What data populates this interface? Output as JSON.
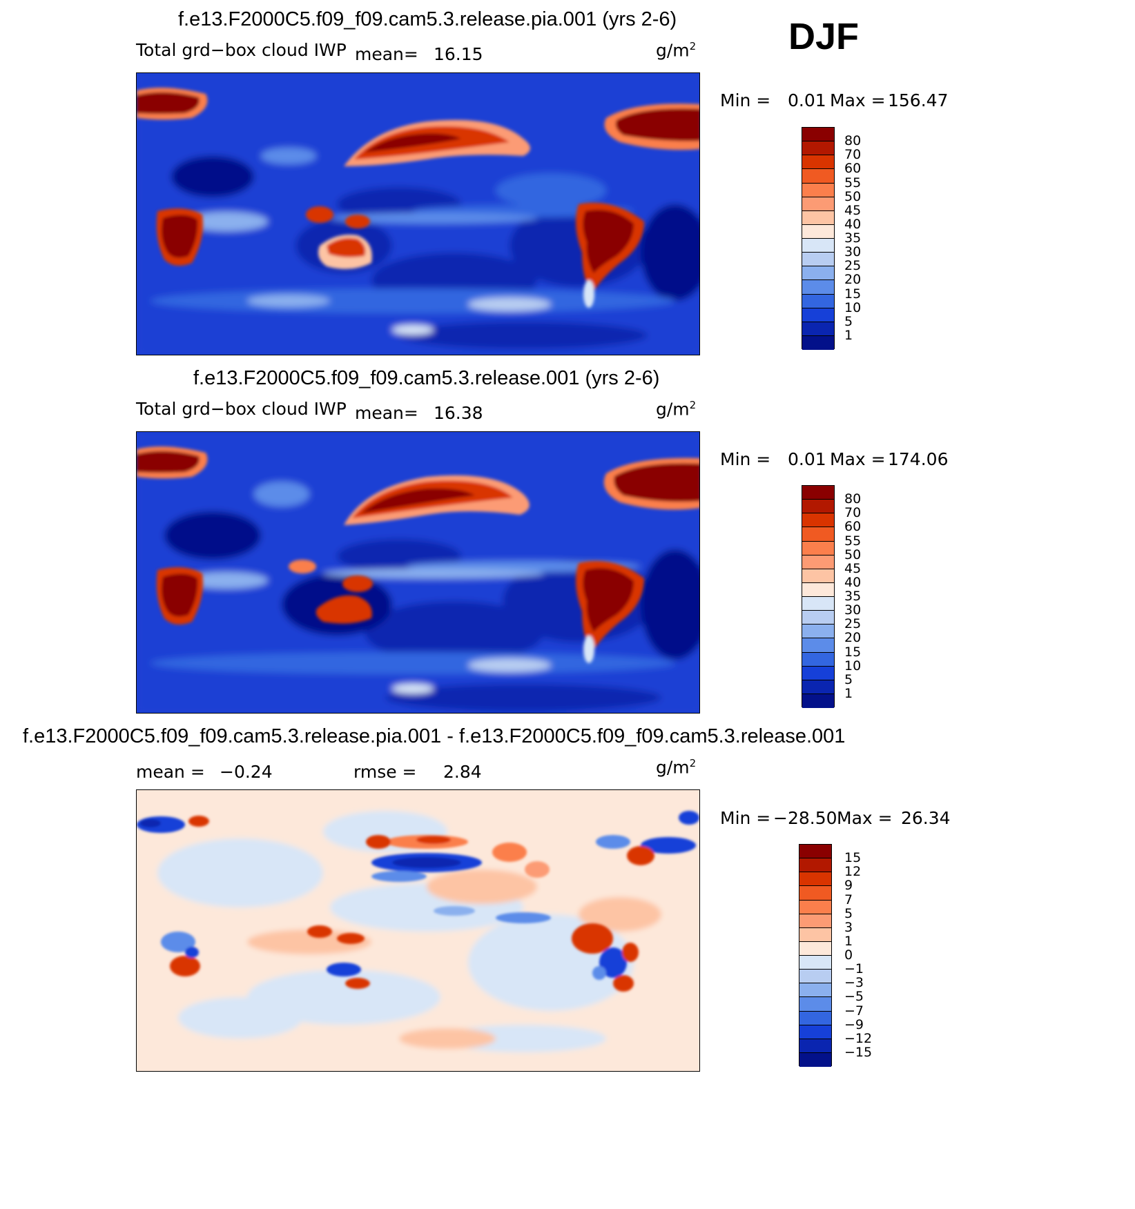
{
  "season": "DJF",
  "panels": [
    {
      "title": "f.e13.F2000C5.f09_f09.cam5.3.release.pia.001 (yrs 2-6)",
      "variable": "Total grd−box cloud IWP",
      "stat1_label": "mean=",
      "stat1_value": "16.15",
      "units": "g/m",
      "units_exp": "2",
      "min_label": "Min =",
      "min_value": "0.01",
      "max_label": "Max =",
      "max_value": "156.47",
      "colorbar": {
        "labels": [
          "80",
          "70",
          "60",
          "55",
          "50",
          "45",
          "40",
          "35",
          "30",
          "25",
          "20",
          "15",
          "10",
          "5",
          "1"
        ],
        "colors": [
          "#8a0000",
          "#b21800",
          "#d93400",
          "#f05a22",
          "#fb7f4c",
          "#fc9b74",
          "#fdc4a4",
          "#fde8da",
          "#d8e6f7",
          "#b8cdf1",
          "#8bb0ee",
          "#5c8ce9",
          "#3366e0",
          "#1640d8",
          "#0a25b0",
          "#03118a"
        ]
      }
    },
    {
      "title": "f.e13.F2000C5.f09_f09.cam5.3.release.001 (yrs 2-6)",
      "variable": "Total grd−box cloud IWP",
      "stat1_label": "mean=",
      "stat1_value": "16.38",
      "units": "g/m",
      "units_exp": "2",
      "min_label": "Min =",
      "min_value": "0.01",
      "max_label": "Max =",
      "max_value": "174.06",
      "colorbar": {
        "labels": [
          "80",
          "70",
          "60",
          "55",
          "50",
          "45",
          "40",
          "35",
          "30",
          "25",
          "20",
          "15",
          "10",
          "5",
          "1"
        ],
        "colors": [
          "#8a0000",
          "#b21800",
          "#d93400",
          "#f05a22",
          "#fb7f4c",
          "#fc9b74",
          "#fdc4a4",
          "#fde8da",
          "#d8e6f7",
          "#b8cdf1",
          "#8bb0ee",
          "#5c8ce9",
          "#3366e0",
          "#1640d8",
          "#0a25b0",
          "#03118a"
        ]
      }
    },
    {
      "title": "f.e13.F2000C5.f09_f09.cam5.3.release.pia.001 - f.e13.F2000C5.f09_f09.cam5.3.release.001",
      "stat1_label": "mean =",
      "stat1_value": "−0.24",
      "stat2_label": "rmse =",
      "stat2_value": "2.84",
      "units": "g/m",
      "units_exp": "2",
      "min_label": "Min =",
      "min_value": "−28.50",
      "max_label": "Max =",
      "max_value": "26.34",
      "colorbar": {
        "labels": [
          "15",
          "12",
          "9",
          "7",
          "5",
          "3",
          "1",
          "0",
          "−1",
          "−3",
          "−5",
          "−7",
          "−9",
          "−12",
          "−15"
        ],
        "colors": [
          "#8a0000",
          "#b21800",
          "#d93400",
          "#f05a22",
          "#fb7f4c",
          "#fc9b74",
          "#fdc4a4",
          "#fde8da",
          "#d8e6f7",
          "#b8cdf1",
          "#8bb0ee",
          "#5c8ce9",
          "#3366e0",
          "#1640d8",
          "#0a25b0",
          "#03118a"
        ]
      }
    }
  ],
  "colors": {
    "base_blue": "#1a40d4",
    "deep_blue": "#03118a",
    "light_blue": "#8bb0ee",
    "dark_red": "#8a0000",
    "red": "#d93400",
    "orange": "#fb7f4c",
    "diff_base": "#fde8da",
    "diff_light_blue": "#d8e6f7"
  }
}
